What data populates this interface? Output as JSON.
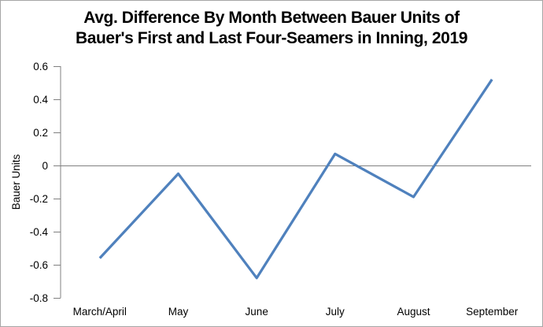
{
  "chart_data": {
    "type": "line",
    "title": "Avg. Difference By Month Between Bauer Units of Bauer's First and Last Four-Seamers in Inning, 2019",
    "title_lines": [
      "Avg. Difference By Month Between Bauer Units of",
      "Bauer's First and Last Four-Seamers in Inning, 2019"
    ],
    "categories": [
      "March/April",
      "May",
      "June",
      "July",
      "August",
      "September"
    ],
    "values": [
      -0.56,
      -0.05,
      -0.68,
      0.07,
      -0.19,
      0.52
    ],
    "xlabel": "",
    "ylabel": "Bauer Units",
    "ylim": [
      -0.8,
      0.6
    ],
    "ytick_values": [
      0.6,
      0.4,
      0.2,
      0,
      -0.2,
      -0.4,
      -0.6,
      -0.8
    ],
    "ytick_labels": [
      "0.6",
      "0.4",
      "0.2",
      "0",
      "-0.2",
      "-0.4",
      "-0.6",
      "-0.8"
    ],
    "grid": "zero-line-only",
    "legend_position": "none",
    "line_color": "#4F81BD",
    "axis_color": "#808080",
    "text_color": "#000000"
  }
}
